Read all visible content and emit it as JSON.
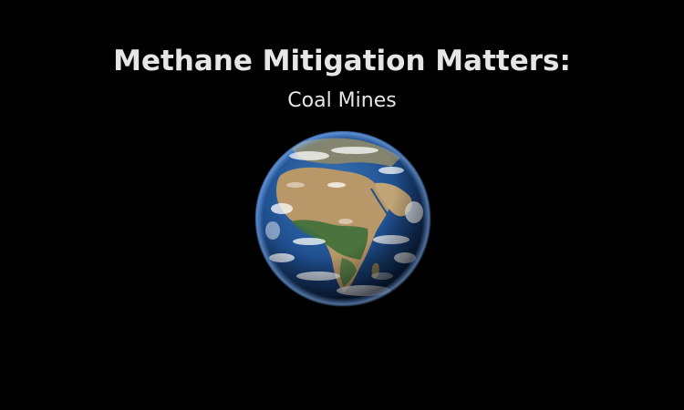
{
  "video_title": {
    "title": "Methane Mitigation Matters:",
    "subtitle": "Coal Mines"
  },
  "background_color": "#000000",
  "text_color": "#e6e6e6",
  "image": {
    "subject": "earth-globe",
    "ocean_color": "#1f4f8f",
    "land_color": "#b89868",
    "vegetation_color": "#3f6f3a",
    "cloud_color": "#ffffff"
  }
}
